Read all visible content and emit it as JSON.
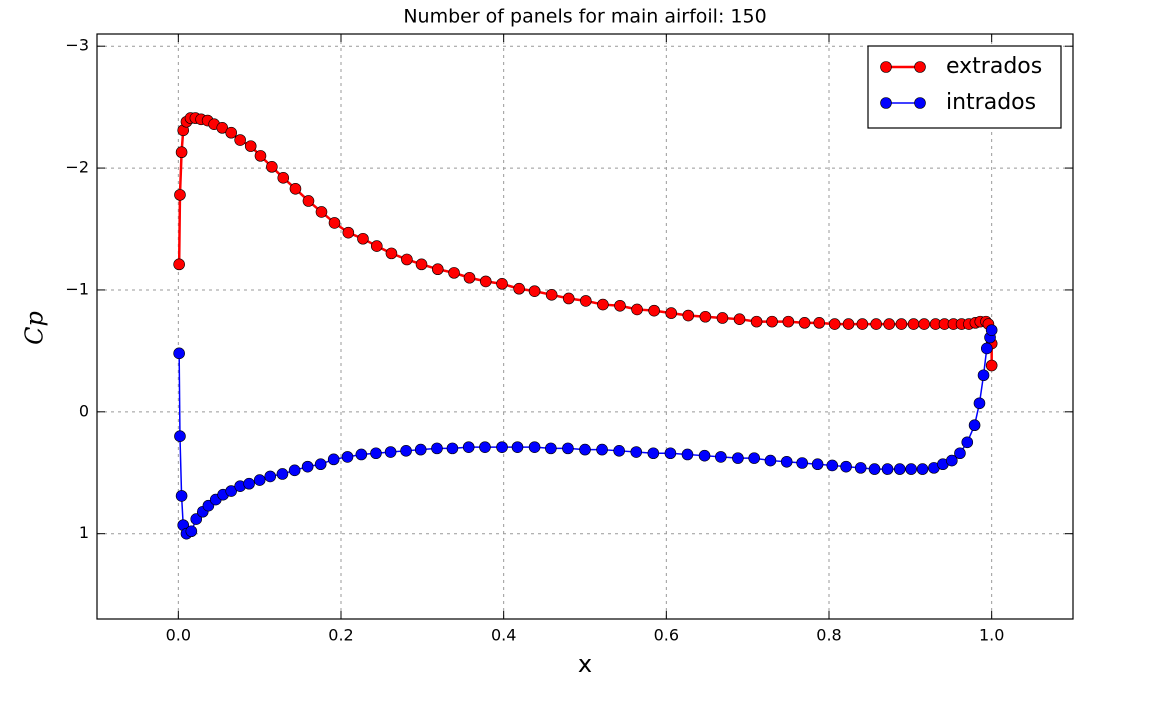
{
  "chart_data": {
    "type": "line",
    "title": "Number of panels for main airfoil: 150",
    "xlabel": "x",
    "ylabel": "Cp",
    "xlim": [
      -0.1,
      1.1
    ],
    "ylim": [
      1.7,
      -3.1
    ],
    "xticks": [
      {
        "value": 0,
        "label": "0.0"
      },
      0.2,
      0.4,
      0.6,
      0.8,
      {
        "value": 1,
        "label": "1.0"
      }
    ],
    "yticks": [
      {
        "value": -3,
        "label": "−3"
      },
      {
        "value": -2,
        "label": "−2"
      },
      {
        "value": -1,
        "label": "−1"
      },
      0,
      1
    ],
    "grid": true,
    "legend": "upper right",
    "series": [
      {
        "name": "extrados",
        "color": "#ff0000",
        "x": [
          0.001,
          0.002,
          0.004,
          0.006,
          0.01,
          0.015,
          0.021,
          0.028,
          0.036,
          0.044,
          0.054,
          0.065,
          0.076,
          0.089,
          0.101,
          0.115,
          0.129,
          0.144,
          0.16,
          0.176,
          0.192,
          0.209,
          0.227,
          0.244,
          0.262,
          0.281,
          0.299,
          0.319,
          0.339,
          0.358,
          0.378,
          0.398,
          0.419,
          0.438,
          0.459,
          0.48,
          0.501,
          0.522,
          0.543,
          0.564,
          0.585,
          0.606,
          0.627,
          0.648,
          0.669,
          0.69,
          0.711,
          0.73,
          0.75,
          0.77,
          0.788,
          0.807,
          0.824,
          0.841,
          0.858,
          0.874,
          0.889,
          0.904,
          0.917,
          0.931,
          0.942,
          0.953,
          0.963,
          0.972,
          0.98,
          0.986,
          0.993,
          0.996,
          1.0,
          1.0
        ],
        "values": [
          -1.21,
          -1.78,
          -2.13,
          -2.31,
          -2.38,
          -2.41,
          -2.41,
          -2.4,
          -2.39,
          -2.36,
          -2.33,
          -2.29,
          -2.23,
          -2.18,
          -2.1,
          -2.01,
          -1.92,
          -1.83,
          -1.73,
          -1.64,
          -1.55,
          -1.47,
          -1.42,
          -1.36,
          -1.3,
          -1.25,
          -1.21,
          -1.17,
          -1.14,
          -1.1,
          -1.07,
          -1.05,
          -1.01,
          -0.99,
          -0.96,
          -0.93,
          -0.91,
          -0.88,
          -0.87,
          -0.84,
          -0.83,
          -0.81,
          -0.79,
          -0.78,
          -0.77,
          -0.76,
          -0.74,
          -0.74,
          -0.74,
          -0.73,
          -0.73,
          -0.72,
          -0.72,
          -0.72,
          -0.72,
          -0.72,
          -0.72,
          -0.72,
          -0.72,
          -0.72,
          -0.72,
          -0.72,
          -0.72,
          -0.72,
          -0.73,
          -0.74,
          -0.74,
          -0.72,
          -0.56,
          -0.38
        ]
      },
      {
        "name": "intrados",
        "color": "#0000ff",
        "x": [
          0.001,
          0.002,
          0.004,
          0.006,
          0.01,
          0.016,
          0.022,
          0.03,
          0.037,
          0.046,
          0.055,
          0.065,
          0.076,
          0.087,
          0.1,
          0.113,
          0.128,
          0.143,
          0.159,
          0.175,
          0.191,
          0.208,
          0.225,
          0.243,
          0.261,
          0.28,
          0.298,
          0.318,
          0.337,
          0.357,
          0.377,
          0.398,
          0.417,
          0.438,
          0.458,
          0.479,
          0.5,
          0.521,
          0.542,
          0.563,
          0.584,
          0.605,
          0.626,
          0.647,
          0.667,
          0.688,
          0.708,
          0.728,
          0.748,
          0.767,
          0.786,
          0.804,
          0.821,
          0.839,
          0.856,
          0.872,
          0.887,
          0.901,
          0.915,
          0.929,
          0.94,
          0.951,
          0.961,
          0.97,
          0.979,
          0.985,
          0.99,
          0.994,
          0.998,
          1.0
        ],
        "values": [
          -0.48,
          0.2,
          0.69,
          0.93,
          1.0,
          0.98,
          0.88,
          0.82,
          0.77,
          0.72,
          0.68,
          0.65,
          0.61,
          0.59,
          0.56,
          0.53,
          0.51,
          0.48,
          0.45,
          0.43,
          0.39,
          0.37,
          0.35,
          0.34,
          0.33,
          0.32,
          0.31,
          0.3,
          0.3,
          0.29,
          0.29,
          0.29,
          0.29,
          0.29,
          0.3,
          0.3,
          0.31,
          0.31,
          0.32,
          0.33,
          0.34,
          0.34,
          0.35,
          0.36,
          0.37,
          0.38,
          0.38,
          0.4,
          0.41,
          0.42,
          0.43,
          0.44,
          0.45,
          0.46,
          0.47,
          0.47,
          0.47,
          0.47,
          0.47,
          0.46,
          0.43,
          0.4,
          0.34,
          0.25,
          0.11,
          -0.07,
          -0.3,
          -0.52,
          -0.61,
          -0.67
        ]
      }
    ]
  }
}
